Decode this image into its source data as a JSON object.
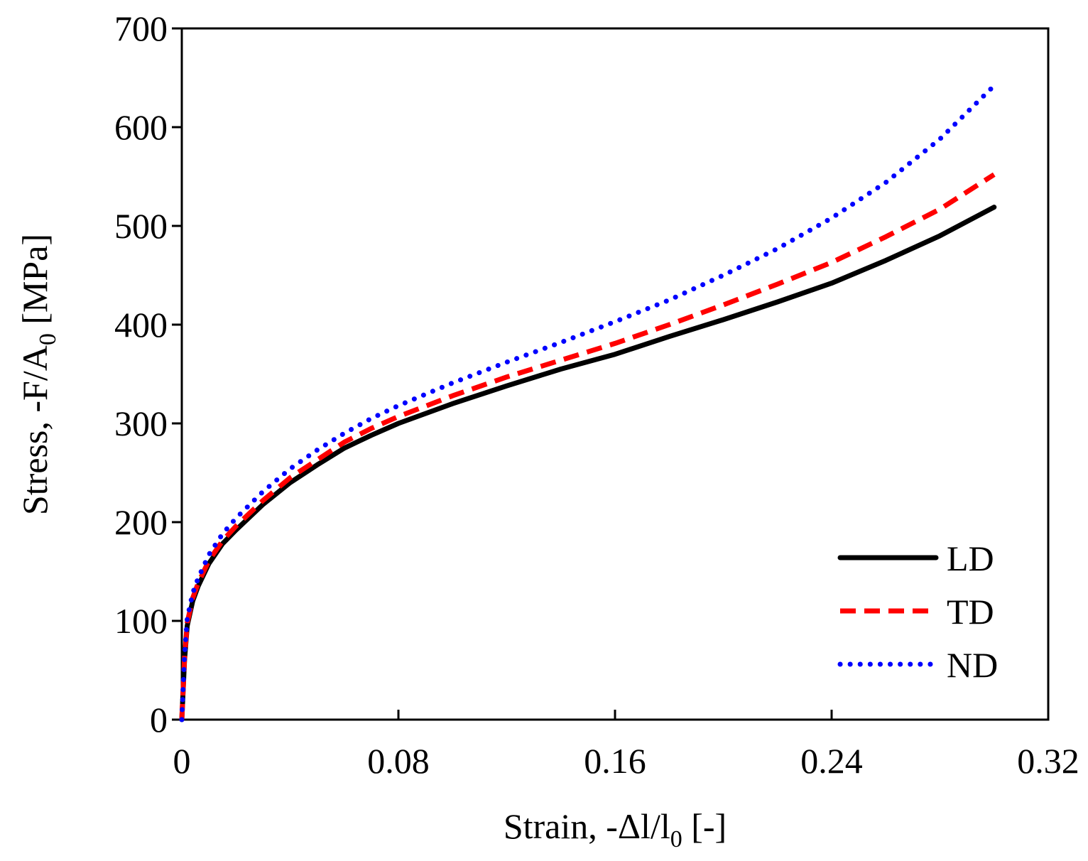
{
  "chart_data": {
    "type": "line",
    "title": "",
    "xlabel": {
      "prefix": "Strain, -Δl/l",
      "sub": "0",
      "suffix": " [-]"
    },
    "ylabel": {
      "prefix": "Stress, -F/A",
      "sub": "0",
      "suffix": " [MPa]"
    },
    "xlim": [
      0,
      0.32
    ],
    "ylim": [
      0,
      700
    ],
    "xticks": [
      0,
      0.08,
      0.16,
      0.24,
      0.32
    ],
    "xtick_labels": [
      "0",
      "0.08",
      "0.16",
      "0.24",
      "0.32"
    ],
    "yticks": [
      0,
      100,
      200,
      300,
      400,
      500,
      600,
      700
    ],
    "ytick_labels": [
      "0",
      "100",
      "200",
      "300",
      "400",
      "500",
      "600",
      "700"
    ],
    "grid": false,
    "legend_position": "bottom-right",
    "series": [
      {
        "name": "LD",
        "color": "#000000",
        "style": "solid",
        "points": [
          [
            0,
            0
          ],
          [
            0.001,
            60
          ],
          [
            0.002,
            95
          ],
          [
            0.004,
            120
          ],
          [
            0.006,
            135
          ],
          [
            0.01,
            158
          ],
          [
            0.015,
            178
          ],
          [
            0.02,
            192
          ],
          [
            0.03,
            218
          ],
          [
            0.04,
            240
          ],
          [
            0.05,
            258
          ],
          [
            0.06,
            275
          ],
          [
            0.07,
            288
          ],
          [
            0.08,
            300
          ],
          [
            0.1,
            320
          ],
          [
            0.12,
            338
          ],
          [
            0.14,
            355
          ],
          [
            0.16,
            370
          ],
          [
            0.18,
            388
          ],
          [
            0.2,
            405
          ],
          [
            0.22,
            423
          ],
          [
            0.24,
            442
          ],
          [
            0.26,
            465
          ],
          [
            0.28,
            490
          ],
          [
            0.3,
            519
          ]
        ]
      },
      {
        "name": "TD",
        "color": "#ff0000",
        "style": "dashed",
        "points": [
          [
            0,
            0
          ],
          [
            0.001,
            62
          ],
          [
            0.002,
            98
          ],
          [
            0.004,
            123
          ],
          [
            0.006,
            138
          ],
          [
            0.01,
            161
          ],
          [
            0.015,
            181
          ],
          [
            0.02,
            196
          ],
          [
            0.03,
            222
          ],
          [
            0.04,
            245
          ],
          [
            0.05,
            263
          ],
          [
            0.06,
            281
          ],
          [
            0.07,
            295
          ],
          [
            0.08,
            307
          ],
          [
            0.1,
            328
          ],
          [
            0.12,
            347
          ],
          [
            0.14,
            364
          ],
          [
            0.16,
            381
          ],
          [
            0.18,
            400
          ],
          [
            0.2,
            420
          ],
          [
            0.22,
            441
          ],
          [
            0.24,
            463
          ],
          [
            0.26,
            489
          ],
          [
            0.28,
            517
          ],
          [
            0.3,
            552
          ]
        ]
      },
      {
        "name": "ND",
        "color": "#0000ff",
        "style": "dotted",
        "points": [
          [
            0,
            0
          ],
          [
            0.001,
            65
          ],
          [
            0.002,
            102
          ],
          [
            0.004,
            128
          ],
          [
            0.006,
            143
          ],
          [
            0.01,
            167
          ],
          [
            0.015,
            188
          ],
          [
            0.02,
            204
          ],
          [
            0.03,
            231
          ],
          [
            0.04,
            254
          ],
          [
            0.05,
            273
          ],
          [
            0.06,
            290
          ],
          [
            0.07,
            305
          ],
          [
            0.08,
            318
          ],
          [
            0.1,
            341
          ],
          [
            0.12,
            362
          ],
          [
            0.14,
            382
          ],
          [
            0.16,
            403
          ],
          [
            0.18,
            425
          ],
          [
            0.2,
            450
          ],
          [
            0.22,
            477
          ],
          [
            0.24,
            508
          ],
          [
            0.26,
            544
          ],
          [
            0.28,
            588
          ],
          [
            0.3,
            642
          ]
        ]
      }
    ]
  }
}
